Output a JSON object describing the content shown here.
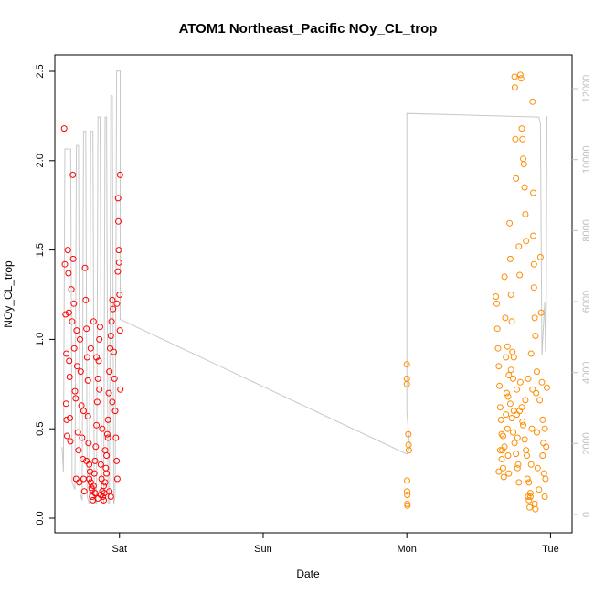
{
  "chart_data": {
    "type": "scatter",
    "title": "ATOM1 Northeast_Pacific NOy_CL_trop",
    "xlabel": "Date",
    "ylabel": "NOy_CL_trop",
    "x_ticks": [
      "Sat",
      "Sun",
      "Mon",
      "Tue"
    ],
    "x_range_days": [
      -0.45,
      3.15
    ],
    "ylim": [
      0,
      2.5
    ],
    "y_ticks": [
      "0.0",
      "0.5",
      "1.0",
      "1.5",
      "2.0",
      "2.5"
    ],
    "y2lim": [
      0,
      12500
    ],
    "y2_ticks": [
      "0",
      "2000",
      "4000",
      "6000",
      "8000",
      "10000",
      "12000"
    ],
    "colors": {
      "series1": "#ff0000",
      "series2": "#ff8c00",
      "altitude": "#c8c8c8",
      "axis": "#000000",
      "axis2": "#c0c0c0"
    },
    "series": [
      {
        "points": [
          [
            -0.385,
            2.18
          ],
          [
            -0.38,
            1.42
          ],
          [
            -0.375,
            1.14
          ],
          [
            -0.37,
            0.92
          ],
          [
            -0.372,
            0.64
          ],
          [
            -0.368,
            0.55
          ],
          [
            -0.365,
            0.46
          ],
          [
            -0.36,
            1.5
          ],
          [
            -0.355,
            1.37
          ],
          [
            -0.352,
            1.15
          ],
          [
            -0.35,
            0.88
          ],
          [
            -0.347,
            0.79
          ],
          [
            -0.345,
            0.56
          ],
          [
            -0.342,
            0.43
          ],
          [
            -0.335,
            1.28
          ],
          [
            -0.33,
            1.1
          ],
          [
            -0.325,
            1.92
          ],
          [
            -0.322,
            1.45
          ],
          [
            -0.318,
            1.2
          ],
          [
            -0.315,
            0.95
          ],
          [
            -0.31,
            0.71
          ],
          [
            -0.305,
            0.67
          ],
          [
            -0.302,
            0.22
          ],
          [
            -0.298,
            1.05
          ],
          [
            -0.295,
            0.85
          ],
          [
            -0.29,
            0.48
          ],
          [
            -0.285,
            0.38
          ],
          [
            -0.28,
            0.2
          ],
          [
            -0.275,
            1.0
          ],
          [
            -0.27,
            0.82
          ],
          [
            -0.265,
            0.63
          ],
          [
            -0.26,
            0.45
          ],
          [
            -0.255,
            0.33
          ],
          [
            -0.25,
            0.22
          ],
          [
            -0.245,
            0.15
          ],
          [
            -0.24,
            1.4
          ],
          [
            -0.235,
            1.22
          ],
          [
            -0.23,
            1.06
          ],
          [
            -0.225,
            0.9
          ],
          [
            -0.22,
            0.57
          ],
          [
            -0.215,
            0.42
          ],
          [
            -0.21,
            0.3
          ],
          [
            -0.205,
            0.26
          ],
          [
            -0.2,
            0.2
          ],
          [
            -0.195,
            0.17
          ],
          [
            -0.19,
            0.12
          ],
          [
            -0.185,
            0.1
          ],
          [
            -0.18,
            0.18
          ],
          [
            -0.175,
            0.25
          ],
          [
            -0.17,
            0.32
          ],
          [
            -0.165,
            0.4
          ],
          [
            -0.16,
            0.52
          ],
          [
            -0.155,
            0.65
          ],
          [
            -0.15,
            0.78
          ],
          [
            -0.145,
            0.88
          ],
          [
            -0.14,
            1.0
          ],
          [
            -0.135,
            1.07
          ],
          [
            -0.13,
            0.3
          ],
          [
            -0.125,
            0.22
          ],
          [
            -0.12,
            0.15
          ],
          [
            -0.115,
            0.12
          ],
          [
            -0.11,
            0.1
          ],
          [
            -0.105,
            0.14
          ],
          [
            -0.1,
            0.2
          ],
          [
            -0.095,
            0.28
          ],
          [
            -0.09,
            0.35
          ],
          [
            -0.085,
            0.47
          ],
          [
            -0.08,
            0.55
          ],
          [
            -0.075,
            0.7
          ],
          [
            -0.07,
            0.82
          ],
          [
            -0.065,
            0.95
          ],
          [
            -0.06,
            1.02
          ],
          [
            -0.055,
            1.1
          ],
          [
            -0.05,
            1.22
          ],
          [
            -0.045,
            1.17
          ],
          [
            -0.04,
            0.93
          ],
          [
            -0.035,
            0.78
          ],
          [
            -0.03,
            0.6
          ],
          [
            -0.025,
            0.45
          ],
          [
            -0.02,
            0.32
          ],
          [
            -0.015,
            0.22
          ],
          [
            -0.01,
            1.79
          ],
          [
            -0.008,
            1.66
          ],
          [
            -0.005,
            1.5
          ],
          [
            -0.003,
            1.43
          ],
          [
            0.0,
            1.25
          ],
          [
            0.003,
            1.05
          ],
          [
            0.006,
            0.72
          ],
          [
            0.004,
            1.92
          ],
          [
            -0.012,
            1.38
          ],
          [
            -0.018,
            1.2
          ],
          [
            -0.23,
            0.32
          ],
          [
            -0.21,
            0.22
          ],
          [
            -0.19,
            0.16
          ],
          [
            -0.17,
            0.14
          ],
          [
            -0.15,
            0.11
          ],
          [
            -0.13,
            0.13
          ],
          [
            -0.11,
            0.18
          ],
          [
            -0.09,
            0.25
          ],
          [
            -0.07,
            0.15
          ],
          [
            -0.06,
            0.12
          ],
          [
            -0.25,
            0.6
          ],
          [
            -0.22,
            0.77
          ],
          [
            -0.2,
            0.95
          ],
          [
            -0.18,
            1.1
          ],
          [
            -0.16,
            0.9
          ],
          [
            -0.14,
            0.72
          ],
          [
            -0.12,
            0.5
          ],
          [
            -0.1,
            0.38
          ],
          [
            -0.08,
            0.45
          ],
          [
            -0.05,
            0.65
          ]
        ]
      },
      {
        "points": [
          [
            2.0,
            0.86
          ],
          [
            2.0,
            0.78
          ],
          [
            2.0,
            0.75
          ],
          [
            2.002,
            0.21
          ],
          [
            2.002,
            0.15
          ],
          [
            2.003,
            0.13
          ],
          [
            2.003,
            0.08
          ],
          [
            2.004,
            0.07
          ],
          [
            2.01,
            0.47
          ],
          [
            2.012,
            0.41
          ],
          [
            2.014,
            0.38
          ],
          [
            2.62,
            1.24
          ],
          [
            2.625,
            1.2
          ],
          [
            2.63,
            1.06
          ],
          [
            2.635,
            0.95
          ],
          [
            2.64,
            0.85
          ],
          [
            2.645,
            0.74
          ],
          [
            2.65,
            0.62
          ],
          [
            2.655,
            0.55
          ],
          [
            2.66,
            0.47
          ],
          [
            2.665,
            0.38
          ],
          [
            2.67,
            0.28
          ],
          [
            2.675,
            0.23
          ],
          [
            2.68,
            1.35
          ],
          [
            2.685,
            1.12
          ],
          [
            2.69,
            0.9
          ],
          [
            2.695,
            0.7
          ],
          [
            2.7,
            0.5
          ],
          [
            2.705,
            0.35
          ],
          [
            2.71,
            0.25
          ],
          [
            2.715,
            1.65
          ],
          [
            2.72,
            1.45
          ],
          [
            2.725,
            1.25
          ],
          [
            2.73,
            1.1
          ],
          [
            2.735,
            0.93
          ],
          [
            2.74,
            0.78
          ],
          [
            2.745,
            0.6
          ],
          [
            2.75,
            2.47
          ],
          [
            2.752,
            2.41
          ],
          [
            2.755,
            2.12
          ],
          [
            2.76,
            1.9
          ],
          [
            2.765,
            0.58
          ],
          [
            2.77,
            0.45
          ],
          [
            2.775,
            0.3
          ],
          [
            2.78,
            1.52
          ],
          [
            2.785,
            1.36
          ],
          [
            2.79,
            2.48
          ],
          [
            2.795,
            2.46
          ],
          [
            2.8,
            2.18
          ],
          [
            2.805,
            2.12
          ],
          [
            2.81,
            2.01
          ],
          [
            2.815,
            1.98
          ],
          [
            2.82,
            1.85
          ],
          [
            2.825,
            1.7
          ],
          [
            2.83,
            1.55
          ],
          [
            2.835,
            0.35
          ],
          [
            2.84,
            0.22
          ],
          [
            2.845,
            0.12
          ],
          [
            2.85,
            0.1
          ],
          [
            2.855,
            0.06
          ],
          [
            2.86,
            0.12
          ],
          [
            2.865,
            0.3
          ],
          [
            2.87,
            0.5
          ],
          [
            2.875,
            0.72
          ],
          [
            2.88,
            1.58
          ],
          [
            2.885,
            1.42
          ],
          [
            2.89,
            1.12
          ],
          [
            2.895,
            1.02
          ],
          [
            2.9,
            0.7
          ],
          [
            2.905,
            0.48
          ],
          [
            2.91,
            0.28
          ],
          [
            2.92,
            0.16
          ],
          [
            2.93,
            1.46
          ],
          [
            2.935,
            1.15
          ],
          [
            2.94,
            0.76
          ],
          [
            2.945,
            0.55
          ],
          [
            2.95,
            0.42
          ],
          [
            2.955,
            0.25
          ],
          [
            2.96,
            0.12
          ],
          [
            2.965,
            0.22
          ],
          [
            2.97,
            0.4
          ],
          [
            2.875,
            2.33
          ],
          [
            2.88,
            1.82
          ],
          [
            2.885,
            1.29
          ],
          [
            2.89,
            0.08
          ],
          [
            2.895,
            0.05
          ],
          [
            2.86,
            0.14
          ],
          [
            2.85,
            0.2
          ],
          [
            2.7,
            0.96
          ],
          [
            2.71,
            0.8
          ],
          [
            2.72,
            0.64
          ],
          [
            2.73,
            0.56
          ],
          [
            2.74,
            0.48
          ],
          [
            2.75,
            0.42
          ],
          [
            2.76,
            0.36
          ],
          [
            2.77,
            0.28
          ],
          [
            2.78,
            0.2
          ],
          [
            2.79,
            0.76
          ],
          [
            2.8,
            0.62
          ],
          [
            2.81,
            0.52
          ],
          [
            2.82,
            0.44
          ],
          [
            2.83,
            0.38
          ],
          [
            2.68,
            0.4
          ],
          [
            2.66,
            0.33
          ],
          [
            2.64,
            0.26
          ],
          [
            2.65,
            0.38
          ],
          [
            2.67,
            0.46
          ],
          [
            2.69,
            0.58
          ],
          [
            2.705,
            0.68
          ],
          [
            2.725,
            0.83
          ],
          [
            2.745,
            0.9
          ],
          [
            2.765,
            0.72
          ],
          [
            2.785,
            0.6
          ],
          [
            2.805,
            0.54
          ],
          [
            2.825,
            0.66
          ],
          [
            2.845,
            0.78
          ],
          [
            2.865,
            0.92
          ],
          [
            2.905,
            0.82
          ],
          [
            2.925,
            0.66
          ],
          [
            2.945,
            0.35
          ],
          [
            2.96,
            0.5
          ],
          [
            2.975,
            0.73
          ]
        ]
      }
    ],
    "altitude_line": [
      [
        -0.4,
        1900
      ],
      [
        -0.39,
        1200
      ],
      [
        -0.38,
        10300
      ],
      [
        -0.34,
        10300
      ],
      [
        -0.33,
        900
      ],
      [
        -0.31,
        700
      ],
      [
        -0.3,
        10400
      ],
      [
        -0.285,
        10400
      ],
      [
        -0.275,
        600
      ],
      [
        -0.26,
        400
      ],
      [
        -0.25,
        10800
      ],
      [
        -0.235,
        10800
      ],
      [
        -0.225,
        500
      ],
      [
        -0.21,
        300
      ],
      [
        -0.2,
        10800
      ],
      [
        -0.185,
        10800
      ],
      [
        -0.175,
        400
      ],
      [
        -0.16,
        300
      ],
      [
        -0.15,
        11200
      ],
      [
        -0.135,
        11200
      ],
      [
        -0.125,
        300
      ],
      [
        -0.11,
        300
      ],
      [
        -0.1,
        11200
      ],
      [
        -0.09,
        11200
      ],
      [
        -0.08,
        300
      ],
      [
        -0.07,
        300
      ],
      [
        -0.06,
        11800
      ],
      [
        -0.05,
        11800
      ],
      [
        -0.04,
        300
      ],
      [
        -0.03,
        500
      ],
      [
        -0.02,
        12500
      ],
      [
        0.005,
        12500
      ],
      [
        0.005,
        5500
      ],
      [
        2.0,
        1700
      ],
      [
        2.02,
        1900
      ],
      [
        2.0,
        2900
      ],
      [
        2.0,
        7100
      ],
      [
        2.0,
        11300
      ],
      [
        2.92,
        11200
      ],
      [
        2.93,
        11000
      ],
      [
        2.94,
        4500
      ],
      [
        2.96,
        6000
      ],
      [
        2.965,
        4600
      ],
      [
        2.97,
        5400
      ],
      [
        2.975,
        11200
      ],
      [
        2.98,
        11200
      ]
    ]
  }
}
